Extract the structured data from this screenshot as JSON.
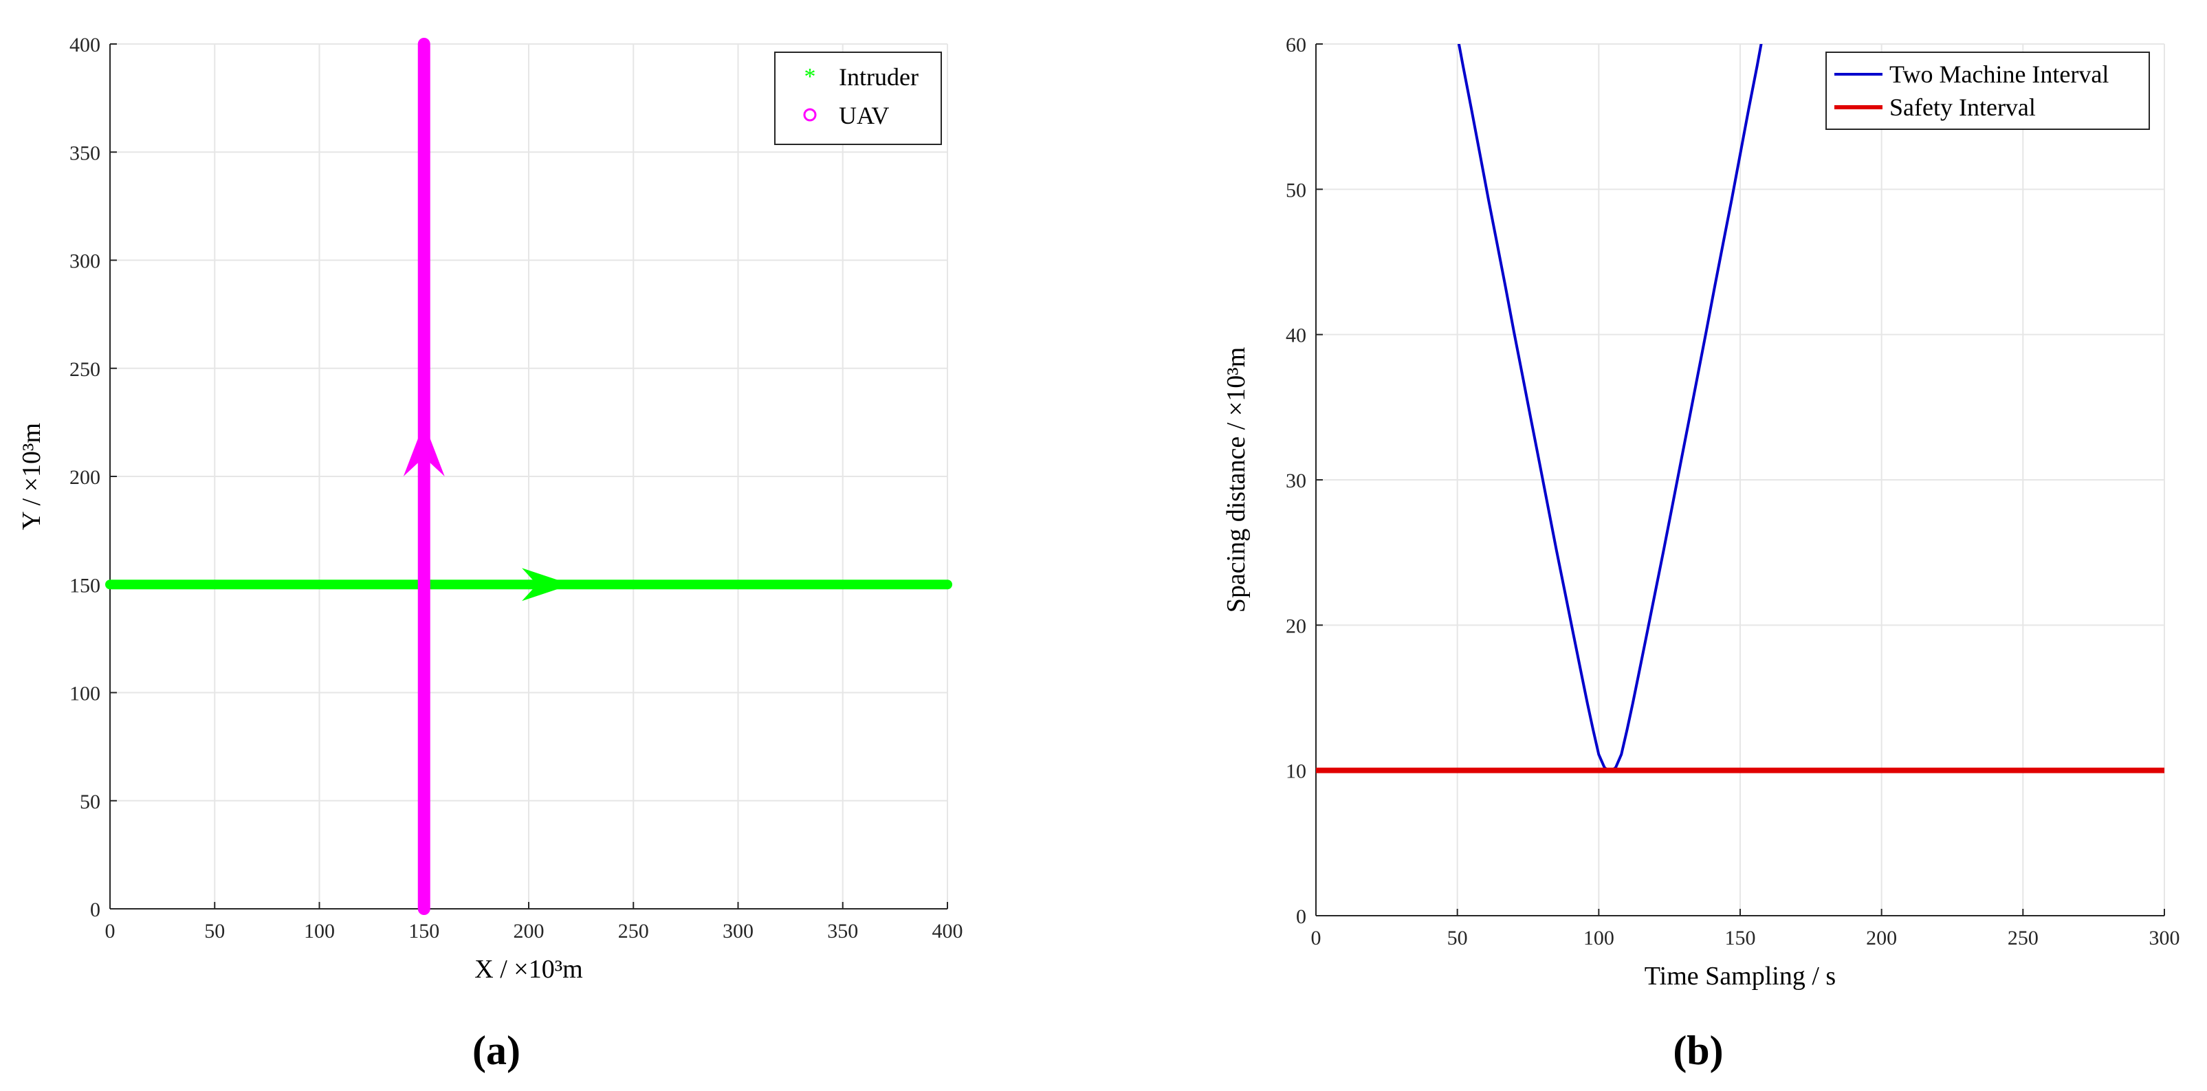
{
  "panels": [
    {
      "caption": "(a)",
      "chart_data": {
        "type": "line",
        "xlabel": "X / ×10³m",
        "ylabel": "Y / ×10³m",
        "xlim": [
          0,
          400
        ],
        "ylim": [
          0,
          400
        ],
        "xticks": [
          0,
          50,
          100,
          150,
          200,
          250,
          300,
          350,
          400
        ],
        "yticks": [
          0,
          50,
          100,
          150,
          200,
          250,
          300,
          350,
          400
        ],
        "grid": true,
        "legend_position": "top-right",
        "series": [
          {
            "name": "Intruder",
            "color": "#00ff00",
            "marker": "*",
            "points": [
              [
                0,
                150
              ],
              [
                400,
                150
              ]
            ],
            "direction_arrow": {
              "x": 200,
              "y": 150,
              "heading": "+x"
            }
          },
          {
            "name": "UAV",
            "color": "#ff00ff",
            "marker": "o",
            "points": [
              [
                150,
                0
              ],
              [
                150,
                400
              ]
            ],
            "direction_arrow": {
              "x": 150,
              "y": 200,
              "heading": "+y"
            }
          }
        ]
      }
    },
    {
      "caption": "(b)",
      "chart_data": {
        "type": "line",
        "xlabel": "Time Sampling / s",
        "ylabel": "Spacing distance / ×10³m",
        "xlim": [
          0,
          300
        ],
        "ylim": [
          0,
          60
        ],
        "xticks": [
          0,
          50,
          100,
          150,
          200,
          250,
          300
        ],
        "yticks": [
          0,
          10,
          20,
          30,
          40,
          50,
          60
        ],
        "grid": true,
        "legend_position": "top-right",
        "series": [
          {
            "name": "Two Machine Interval",
            "color": "#0000cc",
            "x": [
              49,
              52,
              55,
              58,
              61,
              64,
              67,
              70,
              73,
              76,
              79,
              82,
              85,
              88,
              91,
              94,
              96,
              98,
              100,
              102,
              103,
              104,
              105,
              106,
              108,
              110,
              112,
              114,
              117,
              120,
              123,
              126,
              129,
              132,
              135,
              138,
              141,
              144,
              147,
              150,
              153,
              156,
              158
            ],
            "y": [
              61.6,
              58.5,
              55.5,
              52.4,
              49.3,
              46.3,
              43.3,
              40.2,
              37.2,
              34.2,
              31.2,
              28.2,
              25.2,
              22.3,
              19.4,
              16.5,
              14.6,
              12.8,
              11.1,
              10.2,
              10.05,
              10.0,
              10.05,
              10.2,
              11.1,
              12.8,
              14.6,
              16.5,
              19.4,
              22.3,
              25.2,
              28.2,
              31.2,
              34.2,
              37.2,
              40.2,
              43.3,
              46.3,
              49.3,
              52.4,
              55.5,
              58.5,
              60.6
            ]
          },
          {
            "name": "Safety Interval",
            "color": "#e00000",
            "x": [
              0,
              300
            ],
            "y": [
              10,
              10
            ]
          }
        ]
      }
    }
  ]
}
